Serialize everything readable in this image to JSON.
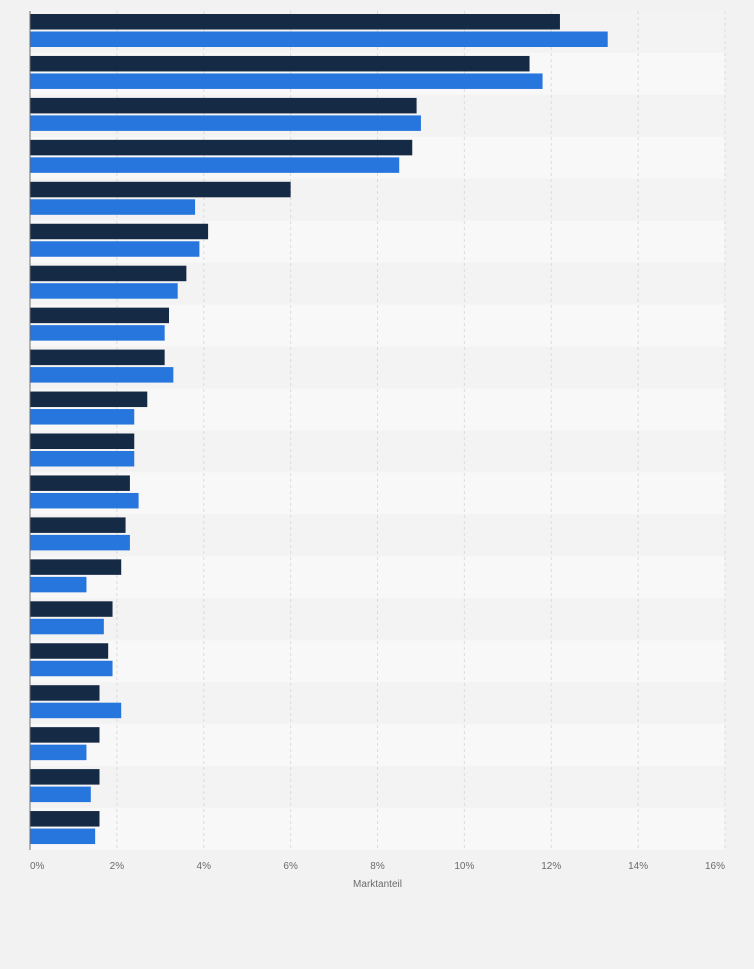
{
  "chart_data": {
    "type": "bar",
    "orientation": "horizontal",
    "xlabel": "Marktanteil",
    "xlim": [
      0,
      16
    ],
    "x_ticks": [
      0,
      2,
      4,
      6,
      8,
      10,
      12,
      14,
      16
    ],
    "x_tick_labels": [
      "0%",
      "2%",
      "4%",
      "6%",
      "8%",
      "10%",
      "12%",
      "14%",
      "16%"
    ],
    "grid": true,
    "legend": "none",
    "categories": [
      "",
      "",
      "",
      "",
      "",
      "",
      "",
      "",
      "",
      "",
      "",
      "",
      "",
      "",
      "",
      "",
      "",
      "",
      "",
      ""
    ],
    "series": [
      {
        "color": "#152a45",
        "values": [
          12.2,
          11.5,
          8.9,
          8.8,
          6.0,
          4.1,
          3.6,
          3.2,
          3.1,
          2.7,
          2.4,
          2.3,
          2.2,
          2.1,
          1.9,
          1.8,
          1.6,
          1.6,
          1.6,
          1.6
        ]
      },
      {
        "color": "#2776de",
        "values": [
          13.3,
          11.8,
          9.0,
          8.5,
          3.8,
          3.9,
          3.4,
          3.1,
          3.3,
          2.4,
          2.4,
          2.5,
          2.3,
          1.3,
          1.7,
          1.9,
          2.1,
          1.3,
          1.4,
          1.5
        ]
      }
    ]
  }
}
